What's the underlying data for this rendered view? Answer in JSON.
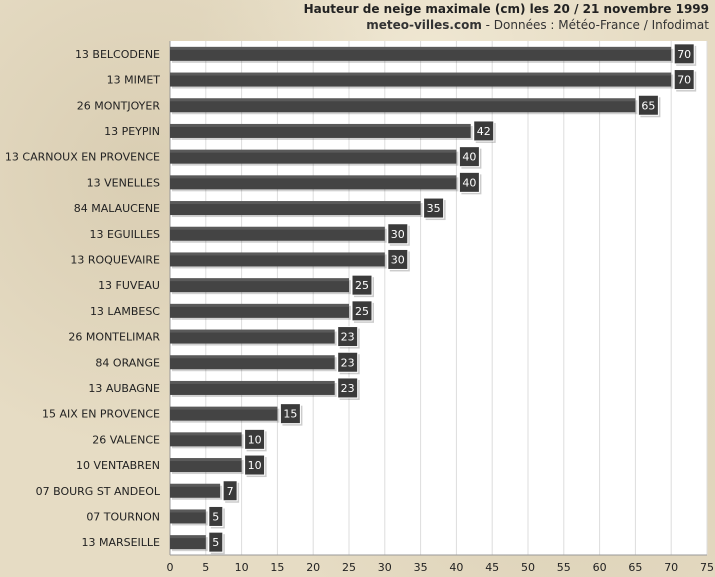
{
  "header": {
    "title": "Hauteur de neige maximale (cm) les 20 / 21 novembre 1999",
    "site": "meteo-villes.com",
    "source": " - Données : Météo-France / Infodimat"
  },
  "colors": {
    "bar": "#444444",
    "label_box": "#3a3a3a",
    "plot_bg": "#ffffff",
    "grid": "#dddddd"
  },
  "chart_data": {
    "type": "bar",
    "orientation": "horizontal",
    "title": "Hauteur de neige maximale (cm) les 20 / 21 novembre 1999",
    "xlabel": "",
    "ylabel": "",
    "xlim": [
      0,
      75
    ],
    "xticks": [
      0,
      5,
      10,
      15,
      20,
      25,
      30,
      35,
      40,
      45,
      50,
      55,
      60,
      65,
      70,
      75
    ],
    "grid": true,
    "categories": [
      "13 BELCODENE",
      "13 MIMET",
      "26 MONTJOYER",
      "13 PEYPIN",
      "13 CARNOUX EN PROVENCE",
      "13 VENELLES",
      "84 MALAUCENE",
      "13 EGUILLES",
      "13 ROQUEVAIRE",
      "13 FUVEAU",
      "13 LAMBESC",
      "26 MONTELIMAR",
      "84 ORANGE",
      "13 AUBAGNE",
      "15 AIX EN PROVENCE",
      "26 VALENCE",
      "10 VENTABREN",
      "07 BOURG ST ANDEOL",
      "07 TOURNON",
      "13 MARSEILLE"
    ],
    "values": [
      70,
      70,
      65,
      42,
      40,
      40,
      35,
      30,
      30,
      25,
      25,
      23,
      23,
      23,
      15,
      10,
      10,
      7,
      5,
      5
    ]
  }
}
